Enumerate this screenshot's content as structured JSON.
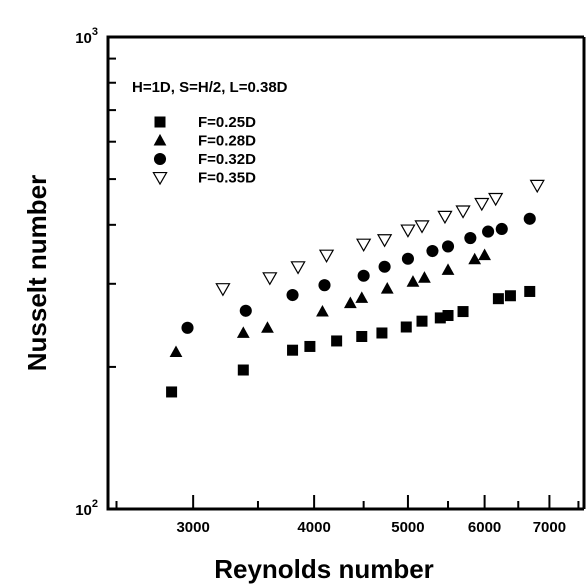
{
  "chart_data": {
    "type": "scatter",
    "title": "",
    "xlabel": "Reynolds number",
    "ylabel": "Nusselt number",
    "x_scale": "log",
    "y_scale": "log",
    "xlim": [
      2450,
      7600
    ],
    "ylim": [
      100,
      1000
    ],
    "grid": false,
    "legend_position": "top-left",
    "annotation": "H=1D, S=H/2, L=0.38D",
    "x_ticks": [
      {
        "value": 3000,
        "label": "3000"
      },
      {
        "value": 4000,
        "label": "4000"
      },
      {
        "value": 5000,
        "label": "5000"
      },
      {
        "value": 6000,
        "label": "6000"
      },
      {
        "value": 7000,
        "label": "7000"
      }
    ],
    "y_ticks": [
      {
        "value": 100,
        "base": "10",
        "exp": "2"
      },
      {
        "value": 1000,
        "base": "10",
        "exp": "3"
      }
    ],
    "series": [
      {
        "name": "F=0.25D",
        "marker": "square",
        "color": "#000000",
        "points": [
          [
            2850,
            177
          ],
          [
            3380,
            197
          ],
          [
            3800,
            217
          ],
          [
            3960,
            221
          ],
          [
            4220,
            227
          ],
          [
            4480,
            232
          ],
          [
            4700,
            236
          ],
          [
            4980,
            243
          ],
          [
            5170,
            250
          ],
          [
            5400,
            254
          ],
          [
            5500,
            257
          ],
          [
            5700,
            262
          ],
          [
            6200,
            279
          ],
          [
            6380,
            283
          ],
          [
            6680,
            289
          ]
        ]
      },
      {
        "name": "F=0.28D",
        "marker": "triangle",
        "color": "#000000",
        "points": [
          [
            2880,
            215
          ],
          [
            3380,
            236
          ],
          [
            3580,
            242
          ],
          [
            4080,
            262
          ],
          [
            4360,
            273
          ],
          [
            4480,
            280
          ],
          [
            4760,
            293
          ],
          [
            5060,
            303
          ],
          [
            5200,
            309
          ],
          [
            5500,
            321
          ],
          [
            5860,
            338
          ],
          [
            6000,
            345
          ]
        ]
      },
      {
        "name": "F=0.32D",
        "marker": "circle",
        "color": "#000000",
        "points": [
          [
            2960,
            242
          ],
          [
            3400,
            263
          ],
          [
            3800,
            284
          ],
          [
            4100,
            298
          ],
          [
            4500,
            312
          ],
          [
            4730,
            326
          ],
          [
            5000,
            339
          ],
          [
            5300,
            352
          ],
          [
            5500,
            360
          ],
          [
            5800,
            375
          ],
          [
            6050,
            387
          ],
          [
            6250,
            392
          ],
          [
            6680,
            412
          ]
        ]
      },
      {
        "name": "F=0.35D",
        "marker": "triangle-down",
        "color": "#000000",
        "points": [
          [
            3220,
            293
          ],
          [
            3600,
            309
          ],
          [
            3850,
            326
          ],
          [
            4120,
            345
          ],
          [
            4500,
            364
          ],
          [
            4730,
            372
          ],
          [
            5000,
            390
          ],
          [
            5170,
            398
          ],
          [
            5460,
            417
          ],
          [
            5700,
            428
          ],
          [
            5960,
            444
          ],
          [
            6160,
            455
          ],
          [
            6800,
            485
          ]
        ]
      }
    ]
  }
}
